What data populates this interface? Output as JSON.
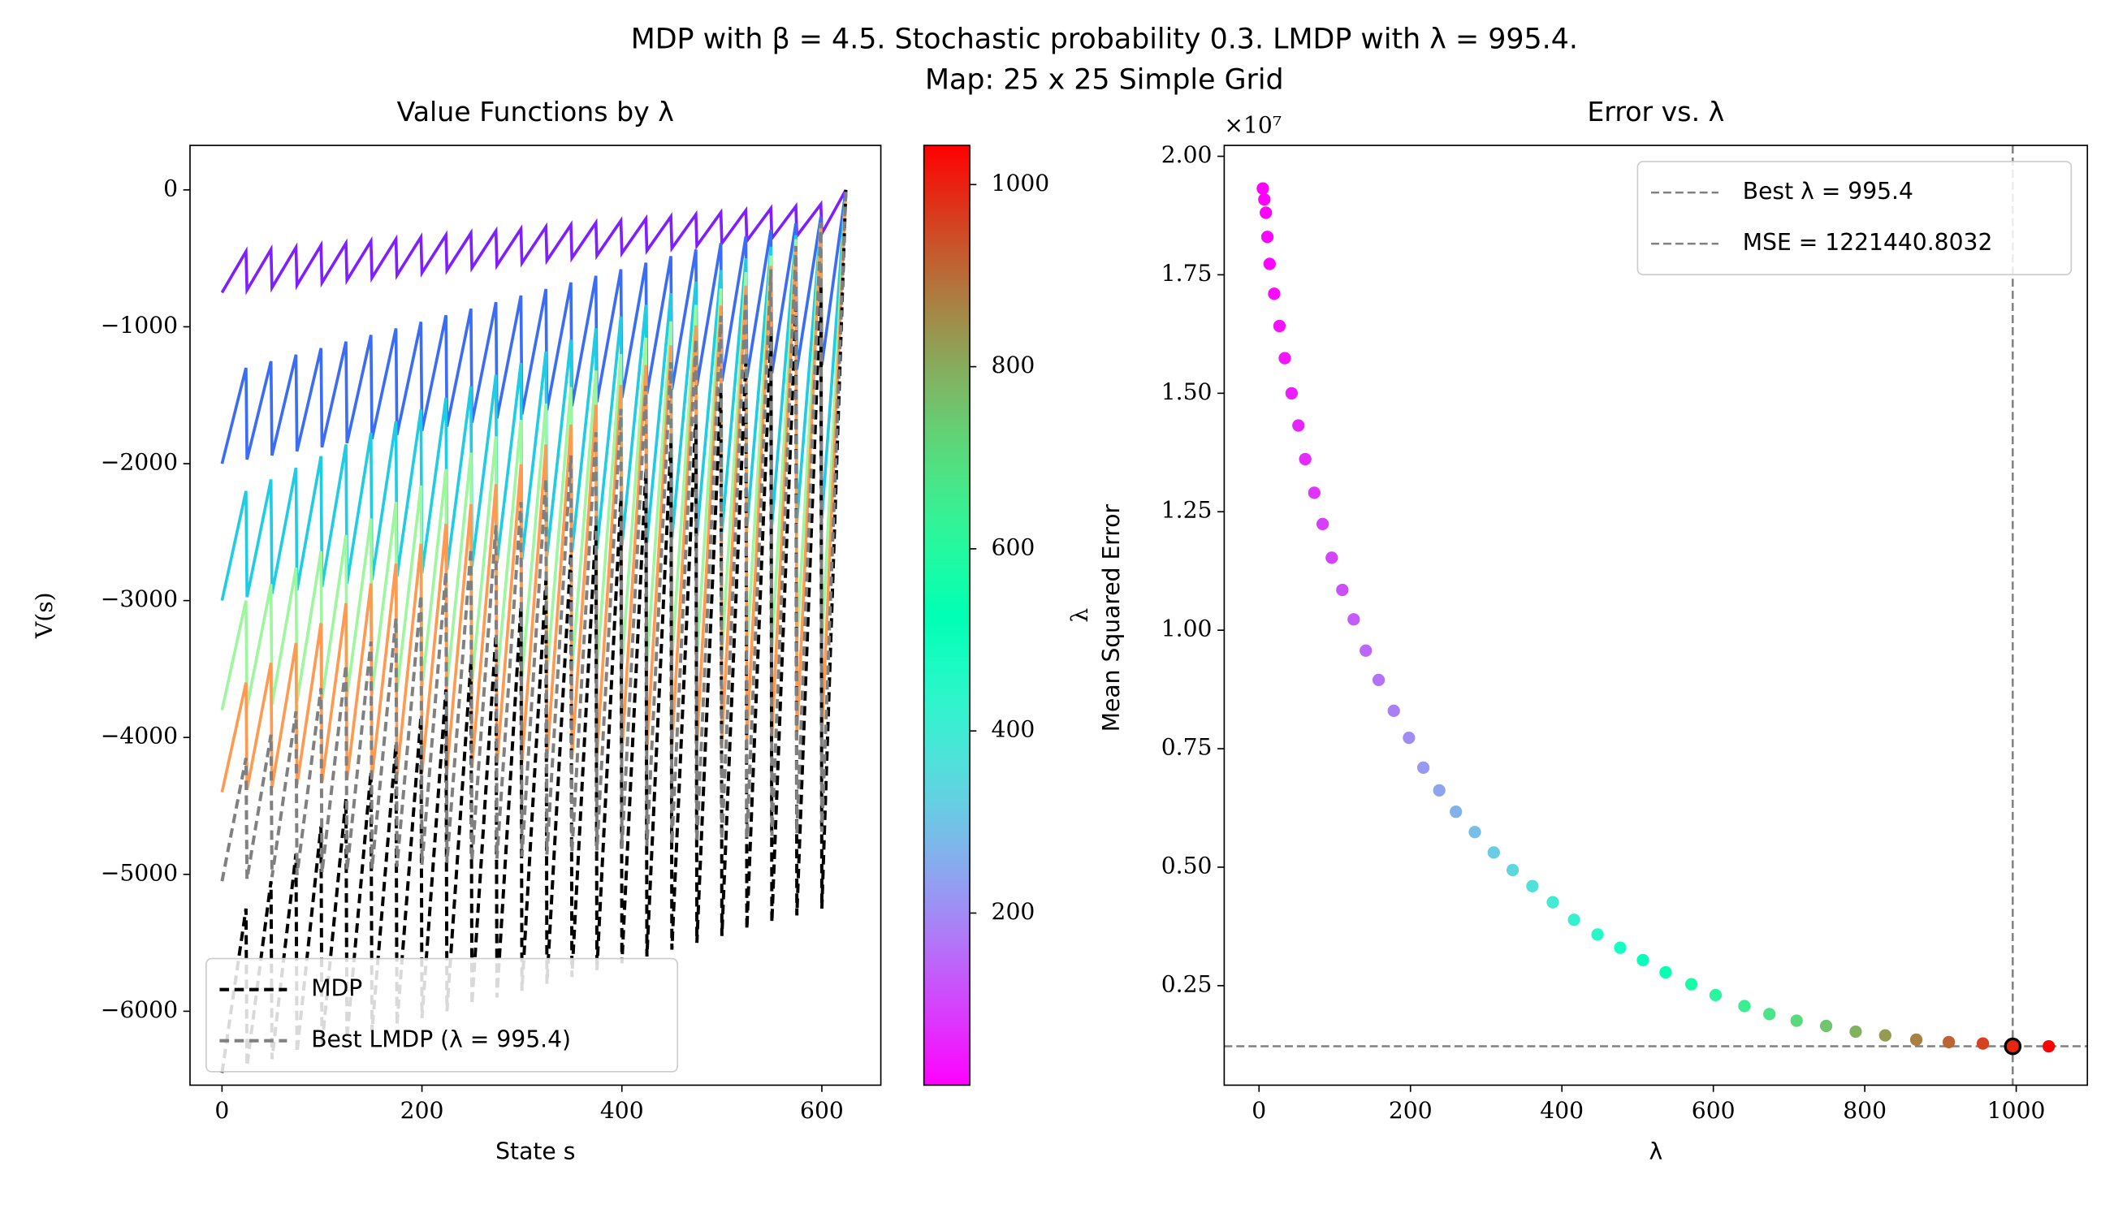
{
  "suptitle": [
    "MDP with β = 4.5. Stochastic probability 0.3. LMDP with λ = 995.4.",
    "Map: 25 x 25 Simple Grid"
  ],
  "chart_data": [
    {
      "type": "line",
      "title": "Value Functions by λ",
      "xlabel": "State s",
      "ylabel": "V(s)",
      "xlim": [
        -32,
        659
      ],
      "ylim": [
        -6540,
        325
      ],
      "xticks": [
        0,
        200,
        400,
        600
      ],
      "yticks": [
        {
          "value": -6000,
          "label": "−6000"
        },
        {
          "value": -5000,
          "label": "−5000"
        },
        {
          "value": -4000,
          "label": "−4000"
        },
        {
          "value": -3000,
          "label": "−3000"
        },
        {
          "value": -2000,
          "label": "−2000"
        },
        {
          "value": -1000,
          "label": "−1000"
        },
        0
      ],
      "legend": "lower left",
      "x": [
        0,
        24,
        25,
        49,
        50,
        74,
        75,
        99,
        100,
        124,
        125,
        149,
        150,
        174,
        175,
        199,
        200,
        224,
        225,
        249,
        250,
        274,
        275,
        299,
        300,
        324,
        325,
        349,
        350,
        374,
        375,
        399,
        400,
        424,
        425,
        449,
        450,
        474,
        475,
        499,
        500,
        524,
        525,
        549,
        550,
        574,
        575,
        599,
        600,
        624
      ],
      "series": [
        {
          "color": "#7f1fff",
          "values": [
            -750,
            -450,
            -732,
            -435,
            -714,
            -420,
            -696,
            -405,
            -678,
            -390,
            -660,
            -375,
            -642,
            -360,
            -624,
            -345,
            -606,
            -330,
            -588,
            -315,
            -570,
            -300,
            -552,
            -285,
            -534,
            -270,
            -516,
            -255,
            -498,
            -240,
            -480,
            -225,
            -462,
            -210,
            -444,
            -195,
            -426,
            -180,
            -408,
            -165,
            -390,
            -150,
            -372,
            -135,
            -354,
            -120,
            -336,
            -105,
            -318,
            0
          ]
        },
        {
          "color": "#3a6cf6",
          "values": [
            -2000,
            -1300,
            -1970,
            -1252,
            -1940,
            -1204,
            -1910,
            -1156,
            -1880,
            -1108,
            -1850,
            -1060,
            -1820,
            -1012,
            -1790,
            -964,
            -1760,
            -916,
            -1730,
            -868,
            -1700,
            -820,
            -1670,
            -772,
            -1640,
            -724,
            -1610,
            -676,
            -1580,
            -628,
            -1550,
            -580,
            -1520,
            -532,
            -1490,
            -484,
            -1460,
            -436,
            -1430,
            -388,
            -1400,
            -340,
            -1370,
            -292,
            -1340,
            -244,
            -1310,
            -196,
            -1280,
            0
          ]
        },
        {
          "color": "#1ecde3",
          "values": [
            -3000,
            -2200,
            -2975,
            -2115,
            -2950,
            -2030,
            -2925,
            -1945,
            -2900,
            -1860,
            -2875,
            -1775,
            -2850,
            -1690,
            -2825,
            -1605,
            -2800,
            -1520,
            -2775,
            -1435,
            -2750,
            -1350,
            -2725,
            -1265,
            -2700,
            -1180,
            -2675,
            -1095,
            -2650,
            -1010,
            -2625,
            -925,
            -2600,
            -840,
            -2575,
            -755,
            -2550,
            -670,
            -2525,
            -585,
            -2500,
            -500,
            -2475,
            -415,
            -2450,
            -330,
            -2425,
            -245,
            -2400,
            0
          ]
        },
        {
          "color": "#9cf79e",
          "values": [
            -3800,
            -3000,
            -3780,
            -2880,
            -3760,
            -2760,
            -3740,
            -2640,
            -3720,
            -2520,
            -3700,
            -2400,
            -3680,
            -2280,
            -3660,
            -2160,
            -3640,
            -2040,
            -3620,
            -1920,
            -3600,
            -1800,
            -3580,
            -1680,
            -3560,
            -1560,
            -3540,
            -1440,
            -3520,
            -1320,
            -3500,
            -1200,
            -3480,
            -1080,
            -3460,
            -960,
            -3440,
            -840,
            -3420,
            -720,
            -3400,
            -600,
            -3380,
            -480,
            -3360,
            -360,
            -3340,
            -240,
            -3320,
            0
          ]
        },
        {
          "color": "#ff9a50",
          "values": [
            -4400,
            -3600,
            -4382,
            -3455,
            -4364,
            -3310,
            -4346,
            -3165,
            -4328,
            -3020,
            -4310,
            -2875,
            -4292,
            -2730,
            -4274,
            -2585,
            -4256,
            -2440,
            -4238,
            -2295,
            -4220,
            -2150,
            -4202,
            -2005,
            -4184,
            -1860,
            -4166,
            -1715,
            -4148,
            -1570,
            -4130,
            -1425,
            -4112,
            -1280,
            -4094,
            -1135,
            -4076,
            -990,
            -4058,
            -845,
            -4040,
            -700,
            -4022,
            -555,
            -4004,
            -410,
            -3986,
            -265,
            -3968,
            0
          ]
        },
        {
          "name": "MDP",
          "color": "#000000",
          "dashed": true,
          "values": [
            -6450,
            -5250,
            -6400,
            -5050,
            -6350,
            -4850,
            -6300,
            -4650,
            -6250,
            -4450,
            -6200,
            -4250,
            -6150,
            -4050,
            -6100,
            -3850,
            -6050,
            -3650,
            -6000,
            -3450,
            -5950,
            -3250,
            -5900,
            -3050,
            -5850,
            -2850,
            -5800,
            -2650,
            -5750,
            -2450,
            -5700,
            -2250,
            -5650,
            -2050,
            -5600,
            -1850,
            -5550,
            -1650,
            -5500,
            -1450,
            -5450,
            -1250,
            -5400,
            -1050,
            -5350,
            -850,
            -5300,
            -650,
            -5250,
            0
          ]
        },
        {
          "name": "Best LMDP (λ = 995.4)",
          "color": "#808080",
          "dashed": true,
          "values": [
            -5050,
            -4150,
            -5035,
            -3980,
            -5020,
            -3810,
            -5005,
            -3640,
            -4990,
            -3470,
            -4975,
            -3300,
            -4960,
            -3130,
            -4945,
            -2960,
            -4930,
            -2790,
            -4915,
            -2620,
            -4900,
            -2450,
            -4885,
            -2280,
            -4870,
            -2110,
            -4855,
            -1940,
            -4840,
            -1770,
            -4825,
            -1600,
            -4810,
            -1430,
            -4795,
            -1260,
            -4780,
            -1090,
            -4765,
            -920,
            -4750,
            -750,
            -4735,
            -580,
            -4720,
            -410,
            -4705,
            -240,
            -4690,
            0
          ]
        }
      ],
      "colorbar": {
        "label": "λ",
        "colormap": "rainbow",
        "lim": [
          11,
          1043
        ],
        "ticks": [
          200,
          400,
          600,
          800,
          1000
        ]
      }
    },
    {
      "type": "scatter",
      "title": "Error vs. λ",
      "xlabel": "λ",
      "ylabel": "Mean Squared Error",
      "y_offset_label": "×10⁷",
      "xlim": [
        -46,
        1094
      ],
      "ylim": [
        0.04,
        2.023
      ],
      "xticks": [
        0,
        200,
        400,
        600,
        800,
        1000
      ],
      "yticks": [
        0.25,
        {
          "value": 0.5,
          "label": "0.50"
        },
        0.75,
        {
          "value": 1.0,
          "label": "1.00"
        },
        1.25,
        {
          "value": 1.5,
          "label": "1.50"
        },
        1.75,
        {
          "value": 2.0,
          "label": "2.00"
        }
      ],
      "colormap": "rainbow",
      "clim": [
        5,
        1043
      ],
      "legend": "upper right",
      "x": [
        5,
        7,
        9,
        11,
        14,
        20,
        27,
        34,
        43,
        52,
        61,
        73,
        84,
        96,
        110,
        125,
        141,
        158,
        178,
        198,
        217,
        238,
        260,
        285,
        310,
        335,
        361,
        388,
        416,
        447,
        477,
        507,
        537,
        571,
        603,
        641,
        674,
        710,
        749,
        788,
        827,
        868,
        911,
        956,
        995.4,
        1043
      ],
      "values": [
        1.932,
        1.909,
        1.881,
        1.83,
        1.773,
        1.71,
        1.642,
        1.574,
        1.5,
        1.432,
        1.361,
        1.29,
        1.224,
        1.153,
        1.085,
        1.023,
        0.957,
        0.895,
        0.83,
        0.773,
        0.71,
        0.662,
        0.617,
        0.574,
        0.531,
        0.494,
        0.46,
        0.426,
        0.389,
        0.358,
        0.33,
        0.304,
        0.278,
        0.253,
        0.23,
        0.207,
        0.19,
        0.176,
        0.165,
        0.153,
        0.145,
        0.136,
        0.131,
        0.128,
        0.122,
        0.122
      ],
      "reference_lines": [
        {
          "label": "Best λ = 995.4",
          "x": 995.4,
          "color": "#808080"
        },
        {
          "label": "MSE = 1221440.8032",
          "y": 0.12214408032,
          "color": "#808080"
        }
      ]
    }
  ]
}
